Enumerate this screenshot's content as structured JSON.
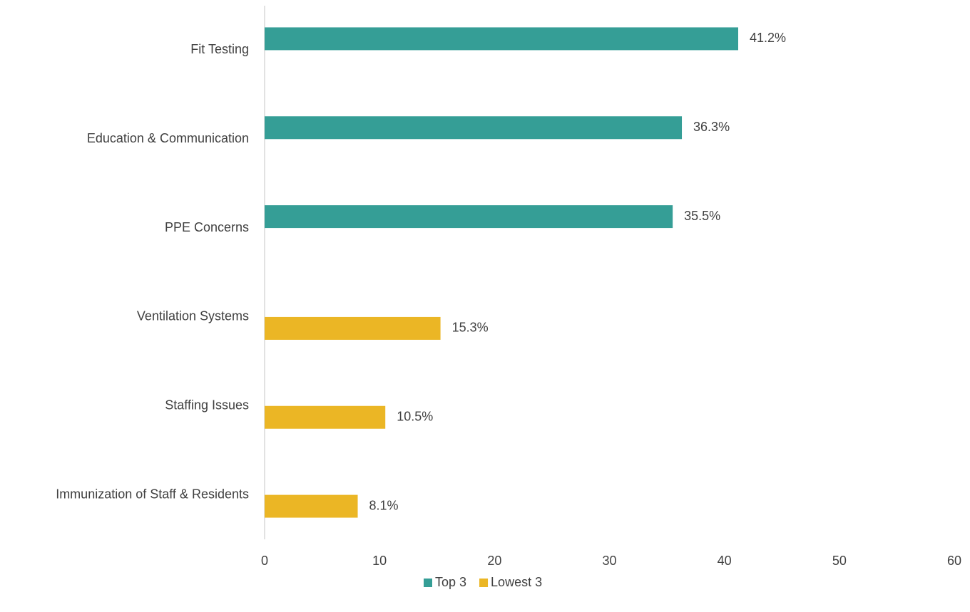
{
  "chart_data": {
    "type": "bar",
    "orientation": "horizontal",
    "categories": [
      "Fit Testing",
      "Education & Communication",
      "PPE Concerns",
      "Ventilation Systems",
      "Staffing Issues",
      "Immunization of Staff & Residents"
    ],
    "series": [
      {
        "name": "Top 3",
        "color": "#359e96",
        "values": [
          41.2,
          36.3,
          35.5,
          null,
          null,
          null
        ],
        "value_labels": [
          "41.2%",
          "36.3%",
          "35.5%",
          null,
          null,
          null
        ]
      },
      {
        "name": "Lowest 3",
        "color": "#ebb625",
        "values": [
          null,
          null,
          null,
          15.3,
          10.5,
          8.1
        ],
        "value_labels": [
          null,
          null,
          null,
          "15.3%",
          "10.5%",
          "8.1%"
        ]
      }
    ],
    "xlim": [
      0,
      60
    ],
    "xticks": [
      0,
      10,
      20,
      30,
      40,
      50,
      60
    ],
    "grid": false,
    "legend": "bottom"
  }
}
